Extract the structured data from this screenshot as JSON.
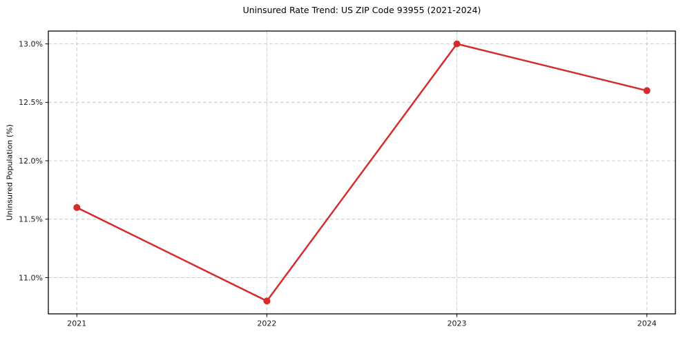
{
  "chart_data": {
    "type": "line",
    "title": "Uninsured Rate Trend: US ZIP Code 93955 (2021-2024)",
    "xlabel": "",
    "ylabel": "Uninsured Population (%)",
    "x": [
      2021,
      2022,
      2023,
      2024
    ],
    "x_tick_labels": [
      "2021",
      "2022",
      "2023",
      "2024"
    ],
    "series": [
      {
        "name": "uninsured-rate",
        "values": [
          11.6,
          10.8,
          13.0,
          12.6
        ],
        "color": "#d62b2b"
      }
    ],
    "y_tick_values": [
      11.0,
      11.5,
      12.0,
      12.5,
      13.0
    ],
    "y_tick_labels": [
      "11.0%",
      "11.5%",
      "12.0%",
      "12.5%",
      "13.0%"
    ],
    "xlim": [
      2020.85,
      2024.15
    ],
    "ylim": [
      10.69,
      13.11
    ],
    "grid": true,
    "legend_position": "none",
    "colors": {
      "line": "#d62b2b",
      "grid": "#cccccc",
      "spine": "#000000",
      "tick_text": "#1a1a1a",
      "background": "#ffffff"
    }
  }
}
